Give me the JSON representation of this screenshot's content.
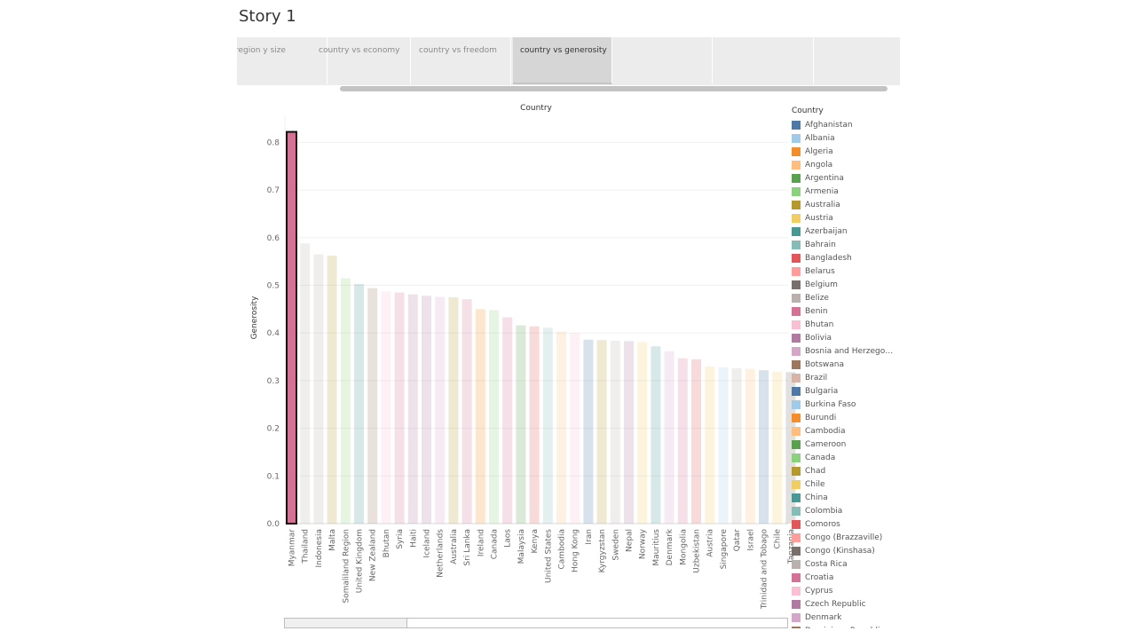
{
  "story": {
    "title": "Story 1"
  },
  "navigator": {
    "points": [
      {
        "label": "region y size",
        "active": false
      },
      {
        "label": "country vs economy",
        "active": false
      },
      {
        "label": "country vs freedom",
        "active": false
      },
      {
        "label": "country vs generosity",
        "active": true
      },
      {
        "label": "",
        "active": false
      },
      {
        "label": "",
        "active": false
      }
    ]
  },
  "legend": {
    "title": "Country",
    "items": [
      {
        "label": "Afghanistan",
        "color": "#4e79a7"
      },
      {
        "label": "Albania",
        "color": "#a0cbe8"
      },
      {
        "label": "Algeria",
        "color": "#f28e2b"
      },
      {
        "label": "Angola",
        "color": "#ffbe7d"
      },
      {
        "label": "Argentina",
        "color": "#59a14f"
      },
      {
        "label": "Armenia",
        "color": "#8cd17d"
      },
      {
        "label": "Australia",
        "color": "#b6992d"
      },
      {
        "label": "Austria",
        "color": "#f1ce63"
      },
      {
        "label": "Azerbaijan",
        "color": "#499894"
      },
      {
        "label": "Bahrain",
        "color": "#86bcb6"
      },
      {
        "label": "Bangladesh",
        "color": "#e15759"
      },
      {
        "label": "Belarus",
        "color": "#ff9d9a"
      },
      {
        "label": "Belgium",
        "color": "#79706e"
      },
      {
        "label": "Belize",
        "color": "#bab0ac"
      },
      {
        "label": "Benin",
        "color": "#d37295"
      },
      {
        "label": "Bhutan",
        "color": "#fabfd2"
      },
      {
        "label": "Bolivia",
        "color": "#b07aa1"
      },
      {
        "label": "Bosnia and Herzegovi..",
        "color": "#d4a6c8"
      },
      {
        "label": "Botswana",
        "color": "#9d7660"
      },
      {
        "label": "Brazil",
        "color": "#d7b5a6"
      },
      {
        "label": "Bulgaria",
        "color": "#4e79a7"
      },
      {
        "label": "Burkina Faso",
        "color": "#a0cbe8"
      },
      {
        "label": "Burundi",
        "color": "#f28e2b"
      },
      {
        "label": "Cambodia",
        "color": "#ffbe7d"
      },
      {
        "label": "Cameroon",
        "color": "#59a14f"
      },
      {
        "label": "Canada",
        "color": "#8cd17d"
      },
      {
        "label": "Chad",
        "color": "#b6992d"
      },
      {
        "label": "Chile",
        "color": "#f1ce63"
      },
      {
        "label": "China",
        "color": "#499894"
      },
      {
        "label": "Colombia",
        "color": "#86bcb6"
      },
      {
        "label": "Comoros",
        "color": "#e15759"
      },
      {
        "label": "Congo (Brazzaville)",
        "color": "#ff9d9a"
      },
      {
        "label": "Congo (Kinshasa)",
        "color": "#79706e"
      },
      {
        "label": "Costa Rica",
        "color": "#bab0ac"
      },
      {
        "label": "Croatia",
        "color": "#d37295"
      },
      {
        "label": "Cyprus",
        "color": "#fabfd2"
      },
      {
        "label": "Czech Republic",
        "color": "#b07aa1"
      },
      {
        "label": "Denmark",
        "color": "#d4a6c8"
      },
      {
        "label": "Dominican Republic",
        "color": "#9d7660"
      }
    ]
  },
  "chart_data": {
    "type": "bar",
    "title": "",
    "xlabel": "Country",
    "ylabel": "Generosity",
    "ylim": [
      0,
      0.82
    ],
    "yticks": [
      "0.0",
      "0.1",
      "0.2",
      "0.3",
      "0.4",
      "0.5",
      "0.6",
      "0.7",
      "0.8"
    ],
    "grid": true,
    "legend_placement": "right",
    "highlighted": "Myanmar",
    "categories": [
      "Myanmar",
      "Thailand",
      "Indonesia",
      "Malta",
      "Somaliland Region",
      "United Kingdom",
      "New Zealand",
      "Bhutan",
      "Syria",
      "Haiti",
      "Iceland",
      "Netherlands",
      "Australia",
      "Sri Lanka",
      "Ireland",
      "Canada",
      "Laos",
      "Malaysia",
      "Kenya",
      "United States",
      "Cambodia",
      "Hong Kong",
      "Iran",
      "Kyrgyzstan",
      "Sweden",
      "Nepal",
      "Norway",
      "Mauritius",
      "Denmark",
      "Mongolia",
      "Uzbekistan",
      "Austria",
      "Singapore",
      "Qatar",
      "Israel",
      "Trinidad and Tobago",
      "Chile",
      "Tanzania"
    ],
    "values": [
      0.822,
      0.588,
      0.565,
      0.562,
      0.515,
      0.503,
      0.494,
      0.487,
      0.485,
      0.481,
      0.478,
      0.476,
      0.475,
      0.471,
      0.45,
      0.448,
      0.433,
      0.416,
      0.414,
      0.411,
      0.403,
      0.4,
      0.386,
      0.385,
      0.384,
      0.383,
      0.381,
      0.372,
      0.362,
      0.347,
      0.345,
      0.33,
      0.328,
      0.326,
      0.325,
      0.322,
      0.319,
      0.318
    ],
    "colors": [
      "#d37295",
      "#bab0ac",
      "#bab0ac",
      "#b6992d",
      "#8cd17d",
      "#499894",
      "#9d7660",
      "#fabfd2",
      "#d37295",
      "#b07aa1",
      "#b07aa1",
      "#d4a6c8",
      "#b6992d",
      "#d37295",
      "#f28e2b",
      "#8cd17d",
      "#d37295",
      "#59a14f",
      "#e15759",
      "#86bcb6",
      "#ffbe7d",
      "#fabfd2",
      "#4e79a7",
      "#b6992d",
      "#bab0ac",
      "#b07aa1",
      "#f1ce63",
      "#499894",
      "#d4a6c8",
      "#d37295",
      "#e15759",
      "#f1ce63",
      "#a0cbe8",
      "#bab0ac",
      "#ffbe7d",
      "#4e79a7",
      "#f1ce63",
      "#79706e"
    ]
  }
}
